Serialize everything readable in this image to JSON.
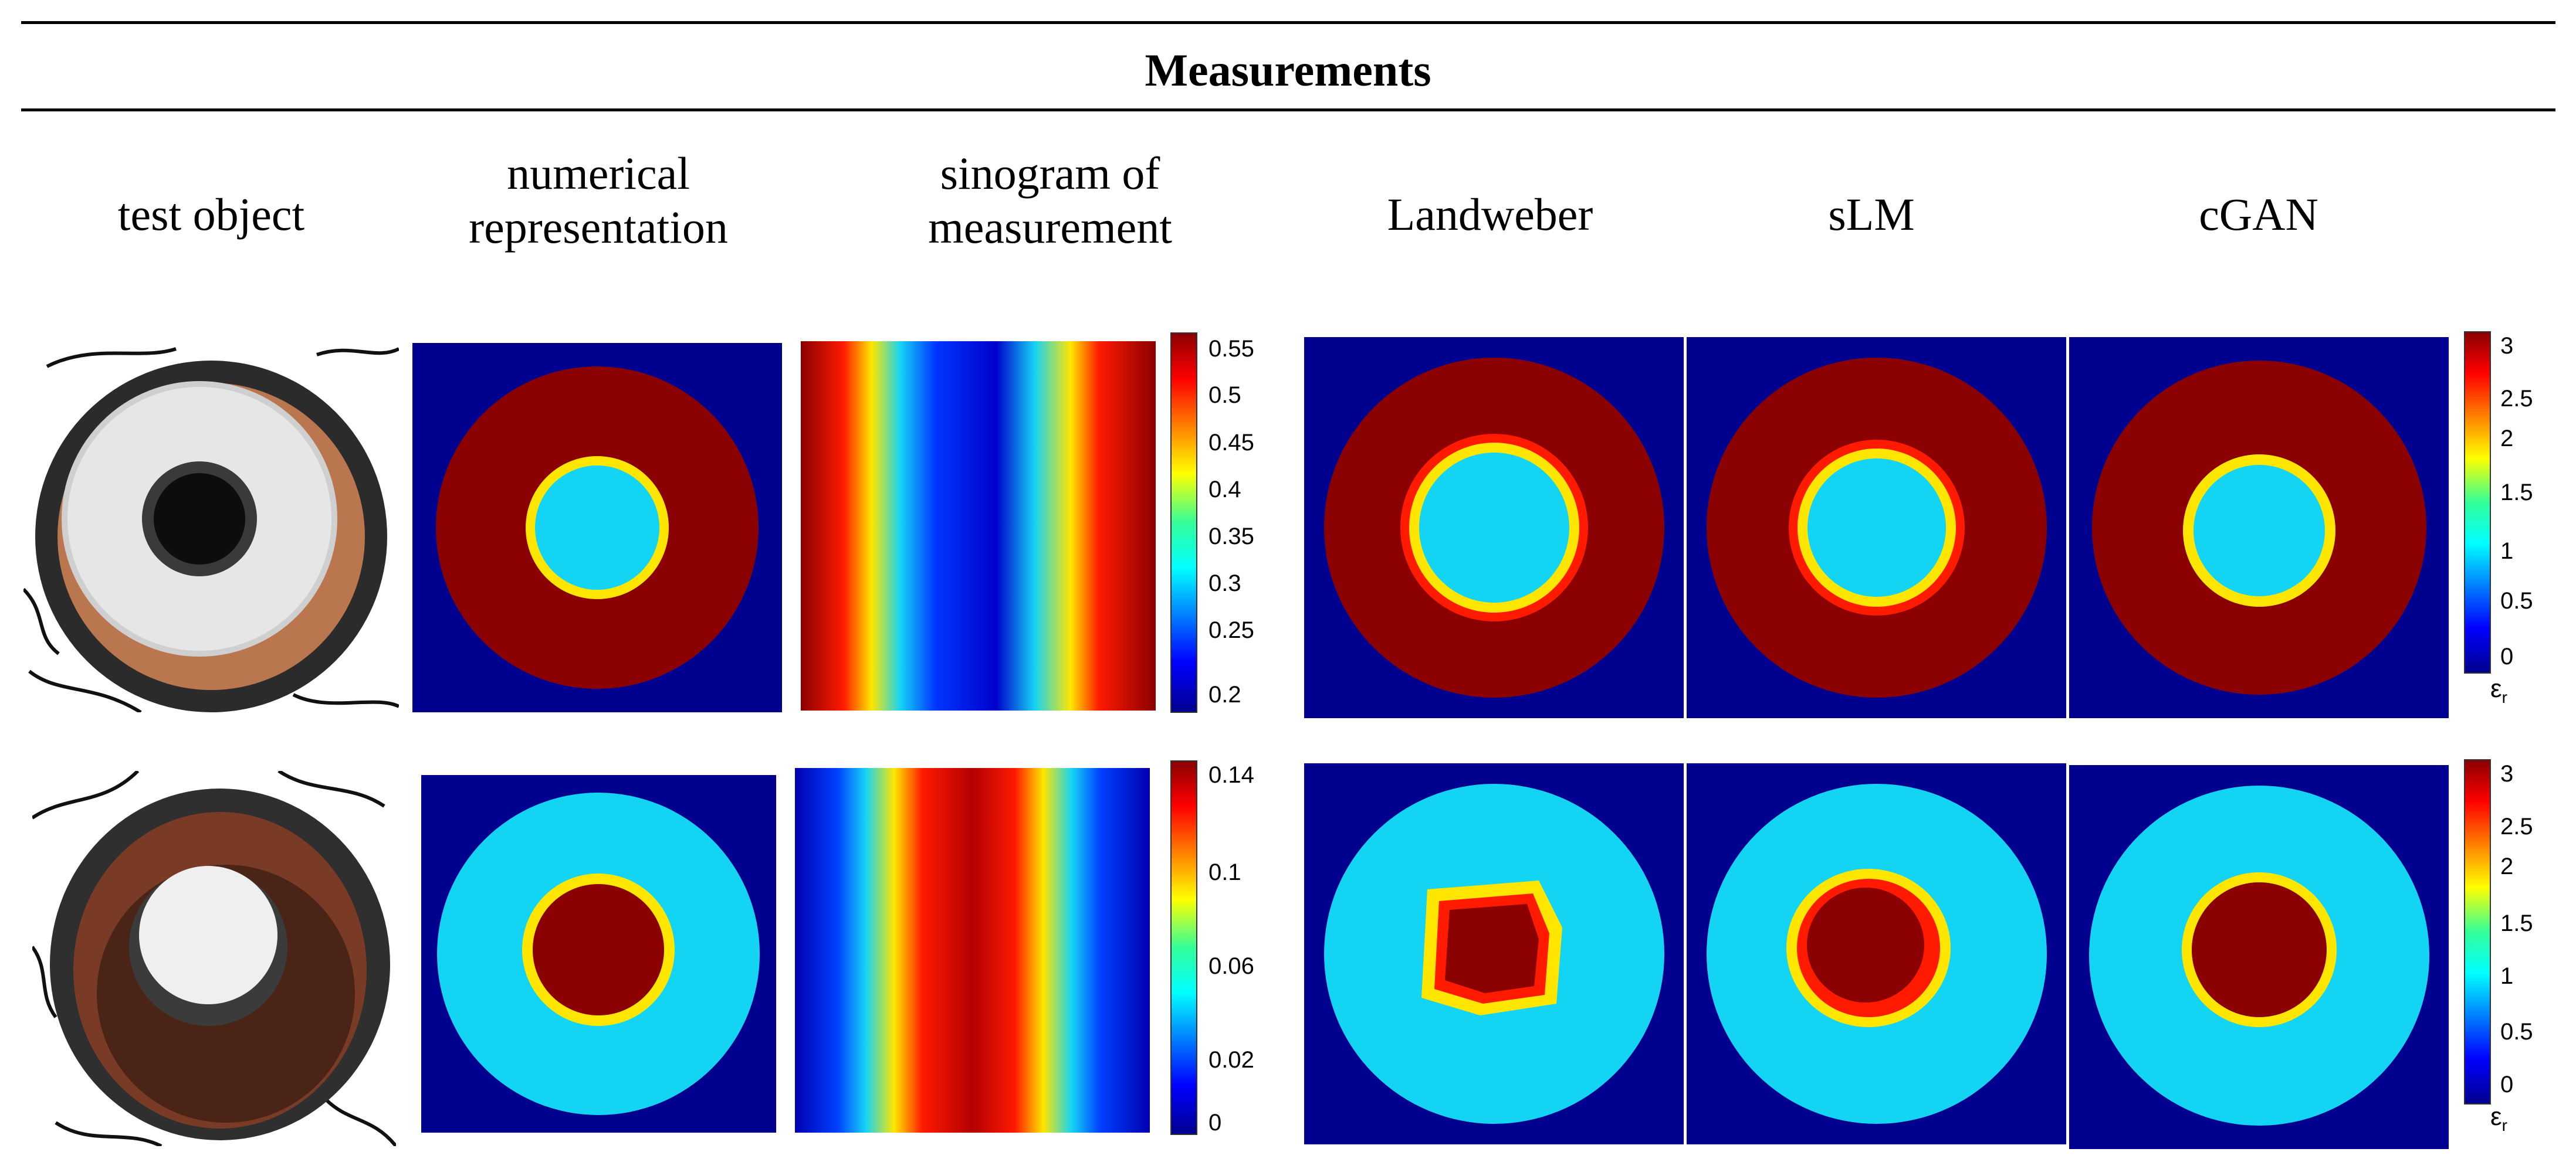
{
  "table": {
    "title": "Measurements",
    "columns": [
      {
        "label": "test object"
      },
      {
        "label_line1": "numerical",
        "label_line2": "representation"
      },
      {
        "label_line1": "sinogram of",
        "label_line2": "measurement"
      },
      {
        "label": "Landweber"
      },
      {
        "label": "sLM"
      },
      {
        "label": "cGAN"
      }
    ]
  },
  "colors": {
    "background_blue": "#00008f",
    "high_red": "#8b0000",
    "mid_cyan": "#14d4f4",
    "jet_red": "#ff1a00",
    "jet_yellow": "#ffe600"
  },
  "chart_data": [
    {
      "type": "heatmap",
      "name": "sinogram row 1 colorbar",
      "ticks": [
        "0.55",
        "0.5",
        "0.45",
        "0.4",
        "0.35",
        "0.3",
        "0.25",
        "0.2"
      ],
      "clim": [
        0.18,
        0.57
      ]
    },
    {
      "type": "heatmap",
      "name": "sinogram row 2 colorbar",
      "ticks": [
        "0.14",
        "0.1",
        "0.06",
        "0.02",
        "0"
      ],
      "clim": [
        0,
        0.145
      ]
    },
    {
      "type": "heatmap",
      "name": "permittivity colorbar row 1",
      "ticks": [
        "3",
        "2.5",
        "2",
        "1.5",
        "1",
        "0.5",
        "0"
      ],
      "clim": [
        0,
        3.2
      ],
      "label": "ε",
      "label_sub": "r"
    },
    {
      "type": "heatmap",
      "name": "permittivity colorbar row 2",
      "ticks": [
        "3",
        "2.5",
        "2",
        "1.5",
        "1",
        "0.5",
        "0"
      ],
      "clim": [
        0,
        3.2
      ],
      "label": "ε",
      "label_sub": "r"
    }
  ]
}
